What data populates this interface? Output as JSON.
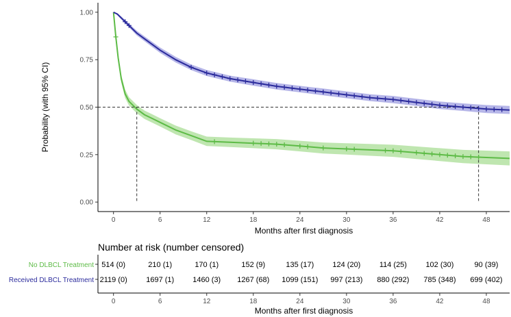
{
  "chart_data": {
    "type": "line",
    "subtype": "kaplan-meier",
    "ylabel": "Probability (with 95% CI)",
    "xlabel": "Months after first diagnosis",
    "xlim": [
      -2,
      51
    ],
    "ylim": [
      -0.05,
      1.05
    ],
    "xticks": [
      0,
      6,
      12,
      18,
      24,
      30,
      36,
      42,
      48
    ],
    "xtick_labels": [
      "0",
      "6",
      "12",
      "18",
      "24",
      "30",
      "36",
      "42",
      "48"
    ],
    "yticks": [
      0,
      0.25,
      0.5,
      0.75,
      1.0
    ],
    "ytick_labels": [
      "0.00",
      "0.25",
      "0.50",
      "0.75",
      "1.00"
    ],
    "reference_line": {
      "y": 0.5,
      "medians": [
        3,
        47
      ]
    },
    "series": [
      {
        "name": "No DLBCL Treatment",
        "color": "#5dbb46",
        "band_color": "#a9dd95",
        "x": [
          0,
          0.3,
          0.6,
          1,
          1.5,
          2,
          3,
          4,
          5,
          6,
          8,
          10,
          12,
          15,
          18,
          21,
          24,
          27,
          30,
          33,
          36,
          39,
          42,
          45,
          48,
          51
        ],
        "y": [
          1.0,
          0.87,
          0.76,
          0.65,
          0.57,
          0.53,
          0.49,
          0.46,
          0.44,
          0.42,
          0.38,
          0.35,
          0.32,
          0.315,
          0.31,
          0.305,
          0.295,
          0.285,
          0.28,
          0.275,
          0.27,
          0.26,
          0.25,
          0.24,
          0.235,
          0.23
        ],
        "ci_half_width": [
          0.0,
          0.02,
          0.02,
          0.02,
          0.022,
          0.022,
          0.022,
          0.022,
          0.022,
          0.022,
          0.023,
          0.023,
          0.025,
          0.025,
          0.026,
          0.027,
          0.028,
          0.029,
          0.03,
          0.031,
          0.032,
          0.033,
          0.034,
          0.035,
          0.036,
          0.037
        ],
        "censor_x": [
          0.3,
          13,
          18,
          19,
          20,
          21,
          22,
          24,
          25,
          27,
          30,
          31,
          35,
          36,
          37,
          39,
          40,
          41,
          42,
          43,
          44,
          45,
          46,
          47
        ]
      },
      {
        "name": "Received DLBCL Treatment",
        "color": "#2b2b9c",
        "band_color": "#9e9ee0",
        "x": [
          0,
          0.5,
          1,
          2,
          3,
          4,
          6,
          8,
          10,
          12,
          15,
          18,
          21,
          24,
          27,
          30,
          33,
          36,
          39,
          42,
          45,
          48,
          51
        ],
        "y": [
          1.0,
          0.99,
          0.97,
          0.93,
          0.89,
          0.86,
          0.8,
          0.75,
          0.71,
          0.68,
          0.65,
          0.63,
          0.61,
          0.595,
          0.58,
          0.565,
          0.55,
          0.54,
          0.525,
          0.51,
          0.5,
          0.49,
          0.485
        ],
        "ci_half_width": [
          0.0,
          0.005,
          0.008,
          0.01,
          0.012,
          0.013,
          0.014,
          0.015,
          0.015,
          0.016,
          0.016,
          0.017,
          0.017,
          0.017,
          0.018,
          0.018,
          0.018,
          0.019,
          0.019,
          0.02,
          0.02,
          0.021,
          0.021
        ],
        "censor_x": [
          1.5,
          2,
          10,
          12,
          13,
          14,
          15,
          16,
          17,
          18,
          19,
          20,
          21,
          22,
          23,
          24,
          25,
          26,
          27,
          28,
          29,
          30,
          31,
          32,
          33,
          34,
          35,
          36,
          37,
          38,
          39,
          40,
          41,
          42,
          43,
          44,
          45,
          46,
          47,
          48,
          49,
          50
        ]
      }
    ],
    "risk_table": {
      "title": "Number at risk (number censored)",
      "xlabel": "Months after first diagnosis",
      "rows": [
        {
          "label": "No DLBCL Treatment",
          "color": "#5dbb46",
          "values": [
            "514 (0)",
            "210 (1)",
            "170 (1)",
            "152 (9)",
            "135 (17)",
            "124 (20)",
            "114 (25)",
            "102 (30)",
            "90 (39)"
          ]
        },
        {
          "label": "Received DLBCL Treatment",
          "color": "#2b2b9c",
          "values": [
            "2119 (0)",
            "1697 (1)",
            "1460 (3)",
            "1267 (68)",
            "1099 (151)",
            "997 (213)",
            "880 (292)",
            "785 (348)",
            "699 (402)"
          ]
        }
      ]
    }
  }
}
